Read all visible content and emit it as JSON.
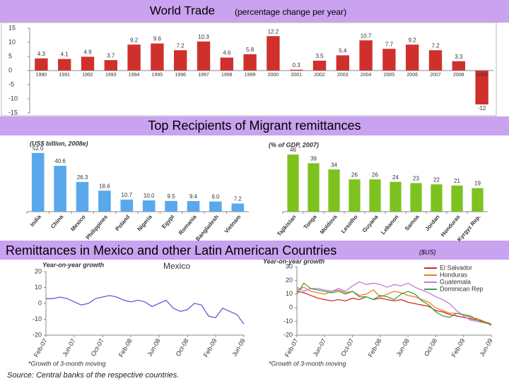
{
  "sections": [
    "Top Recipients of Migrant remittances",
    "Remittances in Mexico and other Latin American Countries"
  ],
  "currency_note": "($US)",
  "source": "Source: Central banks of the respective countries.",
  "chart_data": [
    {
      "type": "bar",
      "title": "World Trade",
      "subtitle": "(percentage change per year)",
      "categories": [
        "1990",
        "1991",
        "1992",
        "1993",
        "1994",
        "1995",
        "1996",
        "1997",
        "1998",
        "1999",
        "2000",
        "2001",
        "2002",
        "2003",
        "2004",
        "2005",
        "2006",
        "2007",
        "2008",
        "2009"
      ],
      "values": [
        4.3,
        4.1,
        4.9,
        3.7,
        9.2,
        9.6,
        7.2,
        10.3,
        4.6,
        5.8,
        12.2,
        0.3,
        3.5,
        5.4,
        10.7,
        7.7,
        9.2,
        7.2,
        3.3,
        -12
      ],
      "color": "#d0302c",
      "ylim": [
        -15,
        15
      ],
      "yticks": [
        15,
        10,
        5,
        0,
        -5,
        -10,
        -15
      ]
    },
    {
      "type": "bar",
      "y_label": "(US$ billion, 2008e)",
      "categories": [
        "India",
        "China",
        "Mexico",
        "Philippines",
        "Poland",
        "Nigeria",
        "Egypt",
        "Romania",
        "Bangladesh",
        "Vietnam"
      ],
      "values": [
        52.0,
        40.6,
        26.3,
        18.6,
        10.7,
        10.0,
        9.5,
        9.4,
        9.0,
        7.2
      ],
      "value_labels": [
        "52.0",
        "40.6",
        "26.3",
        "18.6",
        "10.7",
        "10.0",
        "9.5",
        "9.4",
        "9.0",
        "7.2"
      ],
      "color": "#5aa8ec",
      "ylim": [
        0,
        55
      ]
    },
    {
      "type": "bar",
      "y_label": "(% of GDP, 2007)",
      "categories": [
        "Tajikistan",
        "Tonga",
        "Moldova",
        "Lesotho",
        "Guyana",
        "Lebanon",
        "Samoa",
        "Jordan",
        "Honduras",
        "Kyrgyz Rep."
      ],
      "values": [
        46,
        39,
        34,
        26,
        26,
        24,
        23,
        22,
        21,
        19
      ],
      "color": "#7dc21e",
      "ylim": [
        0,
        50
      ]
    },
    {
      "type": "line",
      "title": "Mexico",
      "y_label": "Year-on-year growth",
      "note": "*Growth of 3-month moving",
      "categories": [
        "Feb-07",
        null,
        null,
        null,
        "Jun-07",
        null,
        null,
        null,
        "Oct-07",
        null,
        null,
        null,
        "Feb-08",
        null,
        null,
        null,
        "Jun-08",
        null,
        null,
        null,
        "Oct-08",
        null,
        null,
        null,
        "Feb-09",
        null,
        null,
        null,
        "Jun-09"
      ],
      "series": [
        {
          "name": "Mexico",
          "color": "#5b5fd6",
          "values": [
            3,
            3,
            4,
            3,
            1,
            -1,
            0,
            3,
            4,
            5,
            4,
            2,
            1,
            2,
            1,
            -2,
            0,
            2,
            -3,
            -5,
            -4,
            0,
            -1,
            -8,
            -9,
            -3,
            -5,
            -7,
            -13
          ]
        }
      ],
      "ylim": [
        -20,
        20
      ],
      "yticks": [
        20,
        10,
        0,
        -10,
        -20
      ]
    },
    {
      "type": "line",
      "y_label": "Year-on-year growth",
      "note": "*Growth of 3-month moving",
      "categories": [
        "Feb-07",
        null,
        null,
        null,
        "Jun-07",
        null,
        null,
        null,
        "Oct-07",
        null,
        null,
        null,
        "Feb-08",
        null,
        null,
        null,
        "Jun-08",
        null,
        null,
        null,
        "Oct-08",
        null,
        null,
        null,
        "Feb-09",
        null,
        null,
        null,
        "Jun-09"
      ],
      "series": [
        {
          "name": "El Salvador",
          "color": "#d42a2a",
          "values": [
            12,
            11,
            9,
            7,
            6,
            5,
            6,
            5,
            7,
            6,
            8,
            6,
            7,
            6,
            5,
            6,
            4,
            3,
            2,
            1,
            -2,
            -3,
            -5,
            -6,
            -7,
            -8,
            -9,
            -10,
            -12
          ]
        },
        {
          "name": "Honduras",
          "color": "#f07a1a",
          "values": [
            13,
            15,
            12,
            11,
            10,
            12,
            13,
            11,
            12,
            9,
            10,
            13,
            8,
            10,
            12,
            11,
            9,
            8,
            6,
            4,
            0,
            -2,
            -4,
            -4,
            -5,
            -7,
            -8,
            -10,
            -13
          ]
        },
        {
          "name": "Guatemala",
          "color": "#c07ae0",
          "values": [
            15,
            12,
            14,
            14,
            13,
            12,
            14,
            12,
            16,
            19,
            17,
            18,
            17,
            15,
            17,
            16,
            18,
            15,
            13,
            11,
            8,
            6,
            3,
            -2,
            -6,
            -9,
            -10,
            -11,
            -12
          ]
        },
        {
          "name": "Dominican Rep",
          "color": "#3aa04a",
          "values": [
            10,
            18,
            14,
            13,
            12,
            11,
            12,
            10,
            12,
            8,
            8,
            6,
            9,
            8,
            6,
            10,
            12,
            10,
            5,
            2,
            -3,
            -6,
            -7,
            -4,
            -5,
            -6,
            -9,
            -11,
            -12
          ]
        }
      ],
      "ylim": [
        -20,
        30
      ],
      "yticks": [
        30,
        20,
        10,
        0,
        -10,
        -20
      ],
      "legend": "top-right"
    }
  ]
}
